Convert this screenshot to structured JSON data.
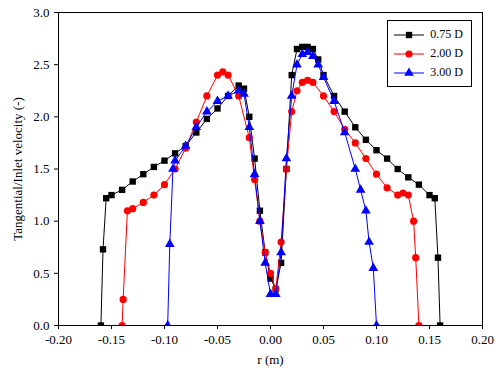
{
  "chart_data": {
    "type": "line",
    "x_label": "r (m)",
    "y_label": "Tangential/Inlet velocity (-)",
    "xlim": [
      -0.2,
      0.2
    ],
    "ylim": [
      0,
      3
    ],
    "xticks": [
      {
        "value": -0.2,
        "label": "-0.20"
      },
      {
        "value": -0.15,
        "label": "-0.15"
      },
      {
        "value": -0.1,
        "label": "-0.10"
      },
      {
        "value": -0.05,
        "label": "-0.05"
      },
      {
        "value": 0,
        "label": "0.00"
      },
      {
        "value": 0.05,
        "label": "0.05"
      },
      {
        "value": 0.1,
        "label": "0.10"
      },
      {
        "value": 0.15,
        "label": "0.15"
      },
      {
        "value": 0.2,
        "label": "0.20"
      }
    ],
    "yticks": [
      {
        "value": 0,
        "label": "0.0"
      },
      {
        "value": 0.5,
        "label": "0.5"
      },
      {
        "value": 1,
        "label": "1.0"
      },
      {
        "value": 1.5,
        "label": "1.5"
      },
      {
        "value": 2,
        "label": "2.0"
      },
      {
        "value": 2.5,
        "label": "2.5"
      },
      {
        "value": 3,
        "label": "3.0"
      }
    ],
    "grid": false,
    "legend": "upper right",
    "series": [
      {
        "name": "0.75 D",
        "color": "#000000",
        "marker": "square",
        "line_style": "solid",
        "x": [
          -0.16,
          -0.158,
          -0.155,
          -0.15,
          -0.14,
          -0.13,
          -0.12,
          -0.11,
          -0.1,
          -0.09,
          -0.08,
          -0.07,
          -0.06,
          -0.05,
          -0.04,
          -0.03,
          -0.025,
          -0.02,
          -0.015,
          -0.01,
          -0.005,
          0,
          0.005,
          0.01,
          0.015,
          0.02,
          0.025,
          0.03,
          0.035,
          0.04,
          0.045,
          0.05,
          0.06,
          0.07,
          0.08,
          0.09,
          0.1,
          0.11,
          0.12,
          0.13,
          0.14,
          0.15,
          0.155,
          0.158,
          0.16
        ],
        "values": [
          0,
          0.73,
          1.22,
          1.25,
          1.3,
          1.38,
          1.45,
          1.52,
          1.58,
          1.65,
          1.72,
          1.85,
          1.98,
          2.08,
          2.2,
          2.3,
          2.27,
          2.0,
          1.6,
          1.1,
          0.7,
          0.45,
          0.35,
          0.6,
          1.5,
          2.4,
          2.65,
          2.67,
          2.67,
          2.65,
          2.55,
          2.4,
          2.2,
          2.05,
          1.9,
          1.78,
          1.68,
          1.6,
          1.5,
          1.42,
          1.35,
          1.25,
          1.22,
          0.65,
          0
        ]
      },
      {
        "name": "2.00 D",
        "color": "#ff0000",
        "marker": "circle",
        "line_style": "solid",
        "x": [
          -0.14,
          -0.139,
          -0.135,
          -0.13,
          -0.12,
          -0.11,
          -0.1,
          -0.09,
          -0.08,
          -0.07,
          -0.06,
          -0.05,
          -0.045,
          -0.04,
          -0.03,
          -0.02,
          -0.015,
          -0.01,
          -0.005,
          0,
          0.005,
          0.01,
          0.015,
          0.02,
          0.025,
          0.03,
          0.035,
          0.04,
          0.05,
          0.06,
          0.07,
          0.08,
          0.09,
          0.1,
          0.11,
          0.12,
          0.125,
          0.13,
          0.135,
          0.137,
          0.14
        ],
        "values": [
          0,
          0.25,
          1.1,
          1.12,
          1.18,
          1.25,
          1.35,
          1.5,
          1.7,
          1.95,
          2.2,
          2.4,
          2.43,
          2.4,
          2.2,
          1.8,
          1.4,
          1.0,
          0.7,
          0.5,
          0.35,
          0.8,
          1.5,
          2.05,
          2.25,
          2.33,
          2.35,
          2.33,
          2.2,
          2.05,
          1.88,
          1.75,
          1.6,
          1.45,
          1.32,
          1.25,
          1.27,
          1.25,
          1.0,
          0.65,
          0
        ]
      },
      {
        "name": "3.00 D",
        "color": "#0000ff",
        "marker": "triangle",
        "line_style": "solid",
        "x": [
          -0.097,
          -0.095,
          -0.092,
          -0.09,
          -0.08,
          -0.07,
          -0.06,
          -0.05,
          -0.04,
          -0.03,
          -0.025,
          -0.02,
          -0.015,
          -0.01,
          -0.005,
          0,
          0.005,
          0.01,
          0.015,
          0.02,
          0.025,
          0.03,
          0.035,
          0.04,
          0.045,
          0.05,
          0.06,
          0.07,
          0.08,
          0.085,
          0.09,
          0.093,
          0.097,
          0.1
        ],
        "values": [
          0,
          0.78,
          1.5,
          1.58,
          1.72,
          1.9,
          2.05,
          2.15,
          2.2,
          2.25,
          2.22,
          1.9,
          1.45,
          1.0,
          0.6,
          0.3,
          0.3,
          0.7,
          1.6,
          2.2,
          2.5,
          2.6,
          2.62,
          2.58,
          2.5,
          2.38,
          2.15,
          1.85,
          1.5,
          1.3,
          1.1,
          0.8,
          0.55,
          0
        ]
      }
    ]
  }
}
